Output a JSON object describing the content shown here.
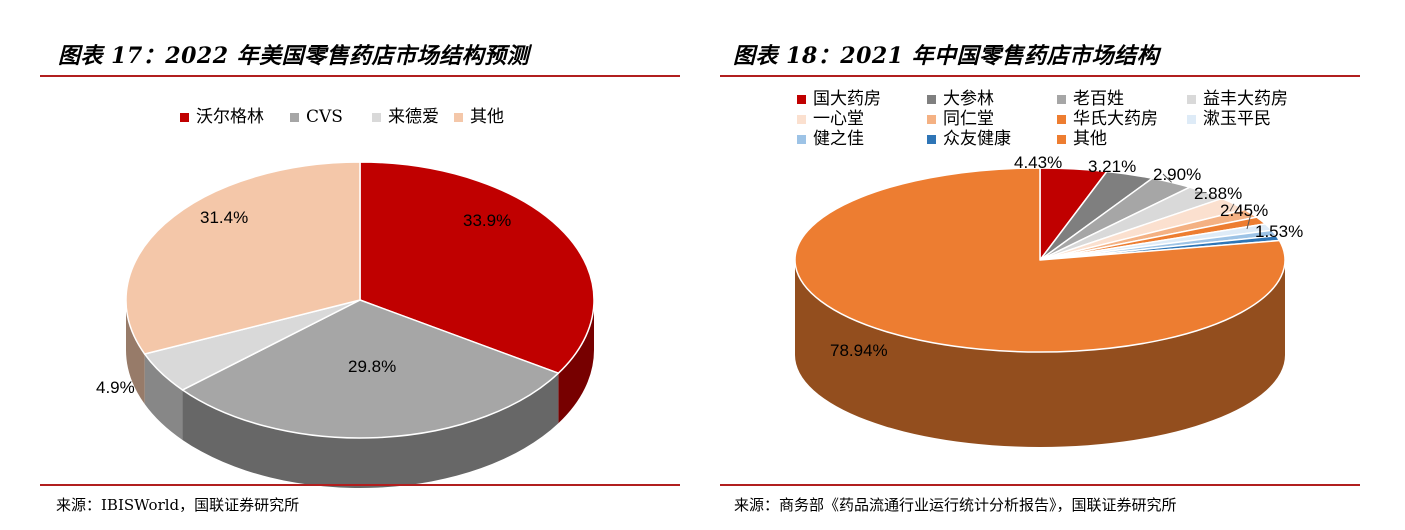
{
  "panels": [
    {
      "title": "图表 17：2022 年美国零售药店市场结构预测",
      "source": "来源：IBISWorld，国联证券研究所"
    },
    {
      "title": "图表 18：2021 年中国零售药店市场结构",
      "source": "来源：商务部《药品流通行业运行统计分析报告》，国联证券研究所"
    }
  ],
  "chart_data": [
    {
      "type": "pie",
      "title": "图表 17：2022 年美国零售药店市场结构预测",
      "legend_position": "top",
      "slices": [
        {
          "label": "沃尔格林",
          "value": 33.9,
          "value_label": "33.9%",
          "color": "#c00000"
        },
        {
          "label": "CVS",
          "value": 29.8,
          "value_label": "29.8%",
          "color": "#a6a6a6"
        },
        {
          "label": "来德爱",
          "value": 4.9,
          "value_label": "4.9%",
          "color": "#d9d9d9"
        },
        {
          "label": "其他",
          "value": 31.4,
          "value_label": "31.4%",
          "color": "#f4c7a9"
        }
      ]
    },
    {
      "type": "pie",
      "title": "图表 18：2021 年中国零售药店市场结构",
      "legend_position": "top",
      "slices": [
        {
          "label": "国大药房",
          "value": 4.43,
          "value_label": "4.43%",
          "color": "#c00000"
        },
        {
          "label": "大参林",
          "value": 3.21,
          "value_label": "3.21%",
          "color": "#7f7f7f"
        },
        {
          "label": "老百姓",
          "value": 2.9,
          "value_label": "2.90%",
          "color": "#a6a6a6"
        },
        {
          "label": "益丰大药房",
          "value": 2.88,
          "value_label": "2.88%",
          "color": "#d9d9d9"
        },
        {
          "label": "一心堂",
          "value": 2.45,
          "value_label": "2.45%",
          "color": "#fbe0cf"
        },
        {
          "label": "同仁堂",
          "value": 1.53,
          "value_label": "1.53%",
          "color": "#f4b183"
        },
        {
          "label": "华氏大药房",
          "value": 1.3,
          "value_label": "",
          "color": "#ed7d31"
        },
        {
          "label": "漱玉平民",
          "value": 1.2,
          "value_label": "",
          "color": "#deebf7"
        },
        {
          "label": "健之佳",
          "value": 1.0,
          "value_label": "",
          "color": "#9dc3e6"
        },
        {
          "label": "众友健康",
          "value": 0.86,
          "value_label": "",
          "color": "#2e75b6"
        },
        {
          "label": "其他",
          "value": 78.94,
          "value_label": "78.94%",
          "color": "#ed7d31"
        }
      ]
    }
  ]
}
